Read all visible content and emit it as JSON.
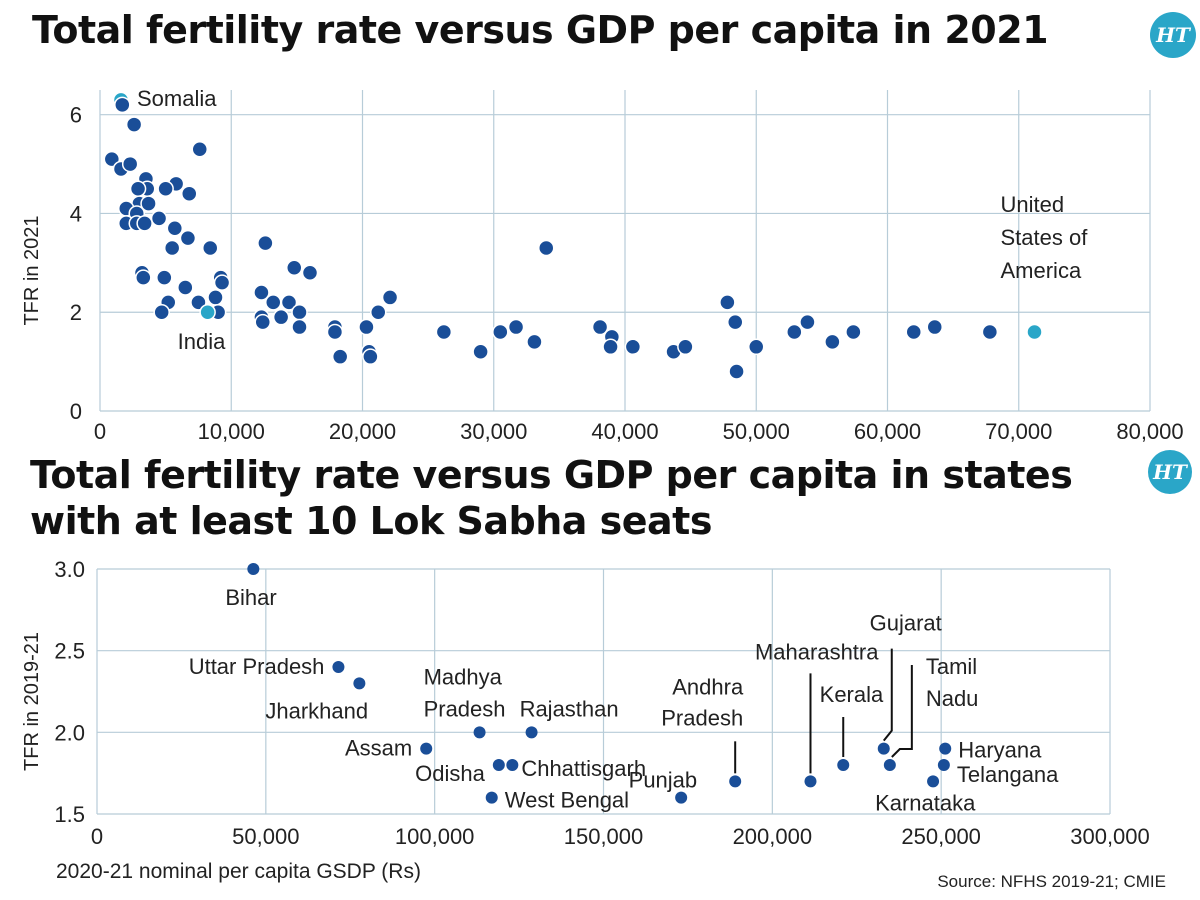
{
  "chart1": {
    "title": "Total fertility rate versus GDP per capita in 2021",
    "logo": "HT",
    "chart_data": {
      "type": "scatter",
      "title": "Total fertility rate versus GDP per capita in 2021",
      "xlabel": "",
      "ylabel": "TFR in 2021",
      "xlim": [
        0,
        80000
      ],
      "ylim": [
        0,
        6.5
      ],
      "xticks": [
        0,
        10000,
        20000,
        30000,
        40000,
        50000,
        60000,
        70000,
        80000
      ],
      "xtick_labels": [
        "0",
        "10,000",
        "20,000",
        "30,000",
        "40,000",
        "50,000",
        "60,000",
        "70,000",
        "80,000"
      ],
      "yticks": [
        0,
        2,
        4,
        6
      ],
      "ytick_labels": [
        "0",
        "2",
        "4",
        "6"
      ],
      "grid": true,
      "highlight_color": "#2aa6c8",
      "point_color": "#1a4e98",
      "points": [
        {
          "x": 1600,
          "y": 6.3,
          "label": "Somalia",
          "highlight": true
        },
        {
          "x": 1700,
          "y": 6.2
        },
        {
          "x": 2600,
          "y": 5.8
        },
        {
          "x": 900,
          "y": 5.1
        },
        {
          "x": 1600,
          "y": 4.9
        },
        {
          "x": 2300,
          "y": 5.0
        },
        {
          "x": 7600,
          "y": 5.3
        },
        {
          "x": 3500,
          "y": 4.7
        },
        {
          "x": 3600,
          "y": 4.5
        },
        {
          "x": 5800,
          "y": 4.6
        },
        {
          "x": 5000,
          "y": 4.5
        },
        {
          "x": 6800,
          "y": 4.4
        },
        {
          "x": 2900,
          "y": 4.5
        },
        {
          "x": 3000,
          "y": 4.2
        },
        {
          "x": 3700,
          "y": 4.2
        },
        {
          "x": 2000,
          "y": 4.1
        },
        {
          "x": 2800,
          "y": 4.0
        },
        {
          "x": 4500,
          "y": 3.9
        },
        {
          "x": 2000,
          "y": 3.8
        },
        {
          "x": 2800,
          "y": 3.8
        },
        {
          "x": 3400,
          "y": 3.8
        },
        {
          "x": 5700,
          "y": 3.7
        },
        {
          "x": 6700,
          "y": 3.5
        },
        {
          "x": 5500,
          "y": 3.3
        },
        {
          "x": 8400,
          "y": 3.3
        },
        {
          "x": 12600,
          "y": 3.4
        },
        {
          "x": 34000,
          "y": 3.3
        },
        {
          "x": 3200,
          "y": 2.8
        },
        {
          "x": 3300,
          "y": 2.7
        },
        {
          "x": 4900,
          "y": 2.7
        },
        {
          "x": 9200,
          "y": 2.7
        },
        {
          "x": 9300,
          "y": 2.6
        },
        {
          "x": 6500,
          "y": 2.5
        },
        {
          "x": 14800,
          "y": 2.9
        },
        {
          "x": 16000,
          "y": 2.8
        },
        {
          "x": 12300,
          "y": 2.4
        },
        {
          "x": 5200,
          "y": 2.2
        },
        {
          "x": 7500,
          "y": 2.2
        },
        {
          "x": 8800,
          "y": 2.3
        },
        {
          "x": 4700,
          "y": 2.0
        },
        {
          "x": 9000,
          "y": 2.0
        },
        {
          "x": 13200,
          "y": 2.2
        },
        {
          "x": 14400,
          "y": 2.2
        },
        {
          "x": 12300,
          "y": 1.9
        },
        {
          "x": 12400,
          "y": 1.8
        },
        {
          "x": 13800,
          "y": 1.9
        },
        {
          "x": 15200,
          "y": 2.0
        },
        {
          "x": 15200,
          "y": 1.7
        },
        {
          "x": 8200,
          "y": 2.0,
          "label": "India",
          "highlight": true
        },
        {
          "x": 21200,
          "y": 2.0
        },
        {
          "x": 22100,
          "y": 2.3
        },
        {
          "x": 17900,
          "y": 1.7
        },
        {
          "x": 17900,
          "y": 1.6
        },
        {
          "x": 20300,
          "y": 1.7
        },
        {
          "x": 18300,
          "y": 1.1
        },
        {
          "x": 20500,
          "y": 1.2
        },
        {
          "x": 20600,
          "y": 1.1
        },
        {
          "x": 26200,
          "y": 1.6
        },
        {
          "x": 29000,
          "y": 1.2
        },
        {
          "x": 30500,
          "y": 1.6
        },
        {
          "x": 31700,
          "y": 1.7
        },
        {
          "x": 33100,
          "y": 1.4
        },
        {
          "x": 38100,
          "y": 1.7
        },
        {
          "x": 39000,
          "y": 1.5
        },
        {
          "x": 38900,
          "y": 1.3
        },
        {
          "x": 40600,
          "y": 1.3
        },
        {
          "x": 43700,
          "y": 1.2
        },
        {
          "x": 44600,
          "y": 1.3
        },
        {
          "x": 47800,
          "y": 2.2
        },
        {
          "x": 48400,
          "y": 1.8
        },
        {
          "x": 48500,
          "y": 0.8
        },
        {
          "x": 50000,
          "y": 1.3
        },
        {
          "x": 52900,
          "y": 1.6
        },
        {
          "x": 53900,
          "y": 1.8
        },
        {
          "x": 55800,
          "y": 1.4
        },
        {
          "x": 57400,
          "y": 1.6
        },
        {
          "x": 62000,
          "y": 1.6
        },
        {
          "x": 63600,
          "y": 1.7
        },
        {
          "x": 67800,
          "y": 1.6
        },
        {
          "x": 71200,
          "y": 1.6,
          "label": "United States of America",
          "highlight": true
        }
      ]
    }
  },
  "chart2": {
    "title": "Total fertility rate versus GDP per capita in states with at least 10 Lok Sabha seats",
    "logo": "HT",
    "source": "Source: NFHS 2019-21; CMIE",
    "chart_data": {
      "type": "scatter",
      "title": "Total fertility rate versus GDP per capita in states with at least 10 Lok Sabha seats",
      "xlabel": "2020-21 nominal per capita GSDP (Rs)",
      "ylabel": "TFR in 2019-21",
      "xlim": [
        0,
        300000
      ],
      "ylim": [
        1.5,
        3.0
      ],
      "xticks": [
        0,
        50000,
        100000,
        150000,
        200000,
        250000,
        300000
      ],
      "xtick_labels": [
        "0",
        "50,000",
        "100,000",
        "150,000",
        "200,000",
        "250,000",
        "300,000"
      ],
      "yticks": [
        1.5,
        2.0,
        2.5,
        3.0
      ],
      "ytick_labels": [
        "1.5",
        "2.0",
        "2.5",
        "3.0"
      ],
      "grid": true,
      "point_color": "#1a4e98",
      "points": [
        {
          "x": 46300,
          "y": 3.0,
          "label": "Bihar"
        },
        {
          "x": 71500,
          "y": 2.4,
          "label": "Uttar Pradesh"
        },
        {
          "x": 77700,
          "y": 2.3,
          "label": "Jharkhand"
        },
        {
          "x": 97500,
          "y": 1.9,
          "label": "Assam"
        },
        {
          "x": 113300,
          "y": 2.0,
          "label": "Madhya Pradesh"
        },
        {
          "x": 128700,
          "y": 2.0,
          "label": "Rajasthan"
        },
        {
          "x": 119000,
          "y": 1.8,
          "label": "Odisha"
        },
        {
          "x": 123000,
          "y": 1.8,
          "label": "Chhattisgarh"
        },
        {
          "x": 116900,
          "y": 1.6,
          "label": "West Bengal"
        },
        {
          "x": 173000,
          "y": 1.6,
          "label": "Punjab"
        },
        {
          "x": 189000,
          "y": 1.7,
          "label": "Andhra Pradesh"
        },
        {
          "x": 211300,
          "y": 1.7,
          "label": "Maharashtra"
        },
        {
          "x": 221000,
          "y": 1.8,
          "label": "Kerala"
        },
        {
          "x": 233000,
          "y": 1.9,
          "label": "Gujarat"
        },
        {
          "x": 234800,
          "y": 1.8,
          "label": "Tamil Nadu"
        },
        {
          "x": 251200,
          "y": 1.9,
          "label": "Haryana"
        },
        {
          "x": 250800,
          "y": 1.8,
          "label": "Telangana"
        },
        {
          "x": 247600,
          "y": 1.7,
          "label": "Karnataka"
        }
      ]
    }
  }
}
